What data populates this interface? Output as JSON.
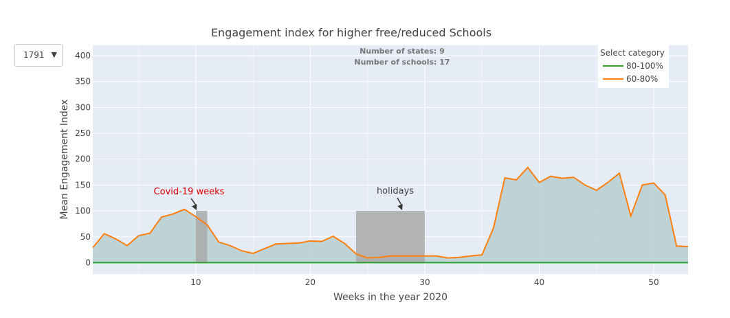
{
  "dropdown": {
    "selected": "1791",
    "arrow": "▼"
  },
  "colors": {
    "plot_bg": "#e5ecf6",
    "grid": "#ffffff",
    "area_fill": "#b6cfcf",
    "line_orange": "#ff7f0e",
    "line_green": "#2ca02c",
    "highlight": "#a9a9a9",
    "covid_text": "#dd0000",
    "text": "#444444"
  },
  "chart_data": {
    "type": "line",
    "title": "Engagement index for higher free/reduced Schools",
    "xlabel": "Weeks in the year 2020",
    "ylabel": "Mean Engagement Index",
    "xlim": [
      1,
      53
    ],
    "ylim": [
      -22,
      420
    ],
    "x_ticks": [
      10,
      20,
      30,
      40,
      50
    ],
    "y_ticks": [
      0,
      50,
      100,
      150,
      200,
      250,
      300,
      350,
      400
    ],
    "grid": true,
    "legend": {
      "title": "Select category",
      "position": "top-right"
    },
    "annotations_top": [
      "Number of states: 9",
      "Number of schools: 17"
    ],
    "series": [
      {
        "name": "80-100%",
        "color": "#2ca02c",
        "x": [
          1,
          53
        ],
        "values": [
          0,
          0
        ]
      },
      {
        "name": "60-80%",
        "color": "#ff7f0e",
        "fill": true,
        "x": [
          1,
          2,
          3,
          4,
          5,
          6,
          7,
          8,
          9,
          10,
          11,
          12,
          13,
          14,
          15,
          16,
          17,
          18,
          19,
          20,
          21,
          22,
          23,
          24,
          25,
          26,
          27,
          28,
          29,
          30,
          31,
          32,
          33,
          34,
          35,
          36,
          37,
          38,
          39,
          40,
          41,
          42,
          43,
          44,
          45,
          46,
          47,
          48,
          49,
          50,
          51,
          52,
          53
        ],
        "values": [
          29,
          56,
          46,
          33,
          52,
          57,
          88,
          94,
          103,
          89,
          73,
          40,
          33,
          23,
          18,
          27,
          36,
          37,
          38,
          42,
          41,
          51,
          37,
          17,
          9,
          10,
          13,
          13,
          13,
          13,
          13,
          9,
          10,
          13,
          15,
          67,
          164,
          160,
          184,
          155,
          167,
          163,
          165,
          150,
          140,
          155,
          173,
          90,
          150,
          154,
          131,
          32,
          31
        ]
      }
    ],
    "highlights": [
      {
        "label": "Covid-19 weeks",
        "x_range": [
          10,
          11
        ],
        "y_top": 100,
        "label_color": "#dd0000"
      },
      {
        "label": "holidays",
        "x_range": [
          24,
          30
        ],
        "y_top": 100,
        "label_color": "#444444"
      }
    ]
  }
}
